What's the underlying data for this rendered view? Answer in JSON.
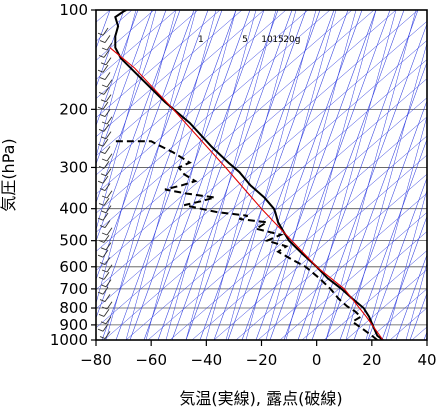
{
  "chart_data": {
    "type": "line",
    "title": "",
    "xlabel": "気温(実線), 露点(破線)",
    "ylabel": "気圧(hPa)",
    "xlim": [
      -80,
      40
    ],
    "ylim": [
      1000,
      100
    ],
    "y_scale": "log",
    "x_ticks": [
      -80,
      -60,
      -40,
      -20,
      0,
      20,
      40
    ],
    "x_tick_labels": [
      "−80",
      "−60",
      "−40",
      "−20",
      "0",
      "20",
      "40"
    ],
    "y_ticks": [
      100,
      200,
      300,
      400,
      500,
      600,
      700,
      800,
      900,
      1000
    ],
    "y_tick_labels": [
      "100",
      "200",
      "300",
      "400",
      "500",
      "600",
      "700",
      "800",
      "900",
      "1000"
    ],
    "grid": true,
    "mixing_ratio_labels": [
      {
        "text": "1",
        "t": -42,
        "p": 114
      },
      {
        "text": "5",
        "t": -26,
        "p": 114
      },
      {
        "text": "10",
        "t": -18,
        "p": 114
      },
      {
        "text": "15",
        "t": -14,
        "p": 114
      },
      {
        "text": "20g",
        "t": -9,
        "p": 114
      }
    ],
    "series": [
      {
        "style": "solid",
        "color": "#000000",
        "points": [
          {
            "t": 24,
            "p": 1000
          },
          {
            "t": 22,
            "p": 970
          },
          {
            "t": 21,
            "p": 930
          },
          {
            "t": 19,
            "p": 850
          },
          {
            "t": 17,
            "p": 800
          },
          {
            "t": 13,
            "p": 750
          },
          {
            "t": 9,
            "p": 700
          },
          {
            "t": 4,
            "p": 650
          },
          {
            "t": 0,
            "p": 600
          },
          {
            "t": -5,
            "p": 550
          },
          {
            "t": -10,
            "p": 500
          },
          {
            "t": -12,
            "p": 470
          },
          {
            "t": -14,
            "p": 440
          },
          {
            "t": -15,
            "p": 410
          },
          {
            "t": -15.5,
            "p": 400
          },
          {
            "t": -19,
            "p": 370
          },
          {
            "t": -24,
            "p": 340
          },
          {
            "t": -28,
            "p": 310
          },
          {
            "t": -32,
            "p": 290
          },
          {
            "t": -38,
            "p": 260
          },
          {
            "t": -46,
            "p": 220
          },
          {
            "t": -55,
            "p": 190
          },
          {
            "t": -64,
            "p": 160
          },
          {
            "t": -71,
            "p": 140
          },
          {
            "t": -73,
            "p": 130
          },
          {
            "t": -73,
            "p": 120
          },
          {
            "t": -72,
            "p": 112
          },
          {
            "t": -73,
            "p": 105
          },
          {
            "t": -70,
            "p": 101
          },
          {
            "t": -69,
            "p": 100
          }
        ]
      },
      {
        "style": "dashed",
        "color": "#000000",
        "points": [
          {
            "t": 22,
            "p": 1000
          },
          {
            "t": 20,
            "p": 970
          },
          {
            "t": 17,
            "p": 930
          },
          {
            "t": 13,
            "p": 880
          },
          {
            "t": 16,
            "p": 850
          },
          {
            "t": 14,
            "p": 820
          },
          {
            "t": 11,
            "p": 790
          },
          {
            "t": 8,
            "p": 750
          },
          {
            "t": 5,
            "p": 700
          },
          {
            "t": 1,
            "p": 650
          },
          {
            "t": -4,
            "p": 600
          },
          {
            "t": -9,
            "p": 570
          },
          {
            "t": -14,
            "p": 540
          },
          {
            "t": -11,
            "p": 520
          },
          {
            "t": -18,
            "p": 500
          },
          {
            "t": -13,
            "p": 480
          },
          {
            "t": -22,
            "p": 460
          },
          {
            "t": -18,
            "p": 440
          },
          {
            "t": -28,
            "p": 430
          },
          {
            "t": -25,
            "p": 420
          },
          {
            "t": -36,
            "p": 410
          },
          {
            "t": -42,
            "p": 400
          },
          {
            "t": -48,
            "p": 390
          },
          {
            "t": -42,
            "p": 380
          },
          {
            "t": -37,
            "p": 370
          },
          {
            "t": -47,
            "p": 360
          },
          {
            "t": -55,
            "p": 350
          },
          {
            "t": -49,
            "p": 340
          },
          {
            "t": -44,
            "p": 330
          },
          {
            "t": -48,
            "p": 315
          },
          {
            "t": -50,
            "p": 300
          },
          {
            "t": -46,
            "p": 290
          },
          {
            "t": -52,
            "p": 270
          },
          {
            "t": -58,
            "p": 255
          },
          {
            "t": -60,
            "p": 250
          },
          {
            "t": -68,
            "p": 250
          },
          {
            "t": -74,
            "p": 250
          }
        ]
      },
      {
        "style": "solid",
        "color": "#e00000",
        "points": [
          {
            "t": 24,
            "p": 1000
          },
          {
            "t": 18,
            "p": 850
          },
          {
            "t": 10,
            "p": 700
          },
          {
            "t": 0,
            "p": 600
          },
          {
            "t": -9,
            "p": 500
          },
          {
            "t": -20,
            "p": 400
          },
          {
            "t": -33,
            "p": 300
          },
          {
            "t": -52,
            "p": 200
          },
          {
            "t": -66,
            "p": 150
          },
          {
            "t": -75,
            "p": 130
          }
        ]
      }
    ]
  }
}
